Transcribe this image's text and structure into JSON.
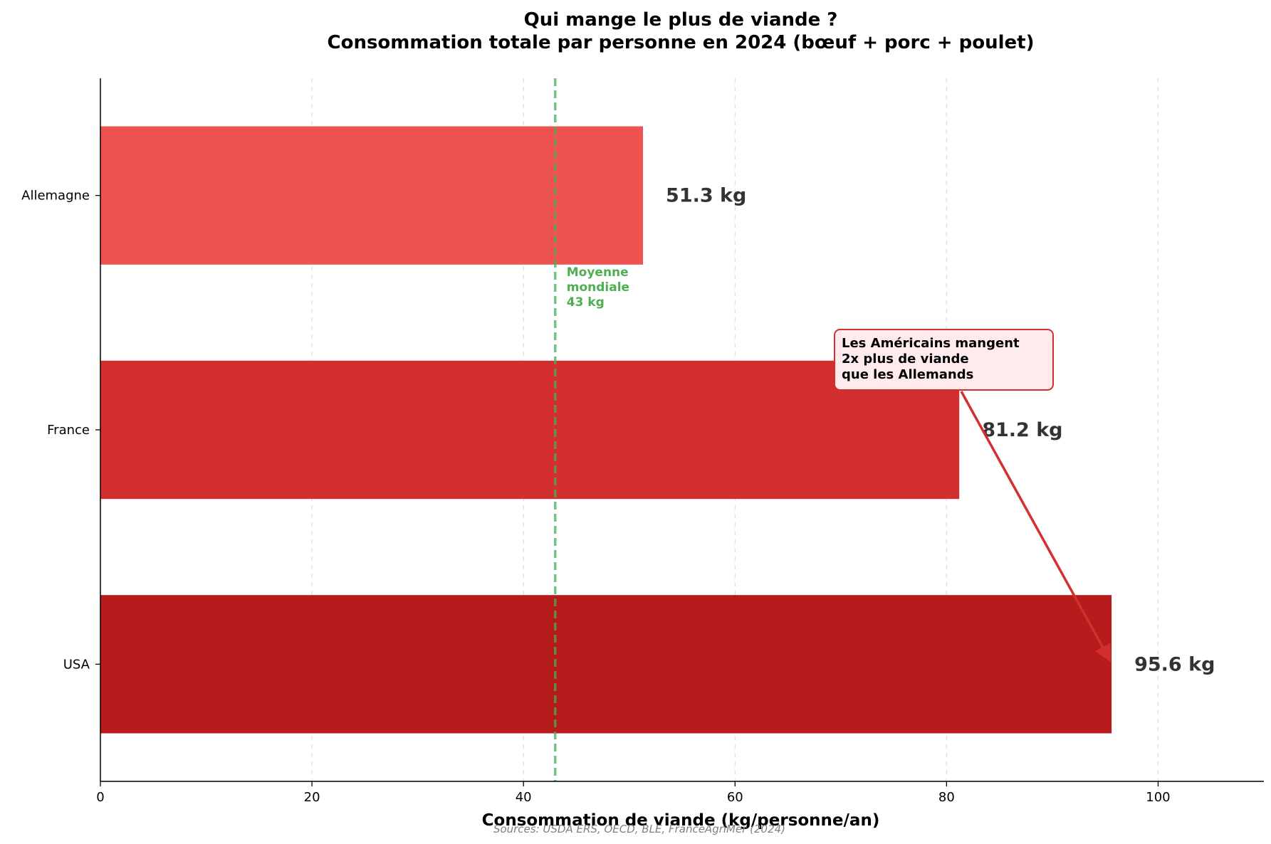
{
  "chart_data": {
    "type": "bar",
    "orientation": "horizontal",
    "title": "Qui mange le plus de viande ?",
    "subtitle": "Consommation totale par personne en 2024 (bœuf + porc + poulet)",
    "xlabel": "Consommation de viande (kg/personne/an)",
    "ylabel": "",
    "xlim": [
      0,
      110
    ],
    "xticks": [
      0,
      20,
      40,
      60,
      80,
      100
    ],
    "grid": "x-dashed",
    "categories": [
      "Allemagne",
      "France",
      "USA"
    ],
    "values": [
      51.3,
      81.2,
      95.6
    ],
    "value_labels": [
      "51.3 kg",
      "81.2 kg",
      "95.6 kg"
    ],
    "colors": [
      "#ef5350",
      "#d32f2f",
      "#b71c1c"
    ],
    "reference_line": {
      "value": 43,
      "label_lines": [
        "Moyenne",
        "mondiale",
        "43 kg"
      ],
      "color": "#4caf50"
    },
    "annotation": {
      "text_lines": [
        "Les Américains mangent",
        "2x plus de viande",
        "que les Allemands"
      ],
      "arrow_target": {
        "category": "USA",
        "value": 95.6
      },
      "color": "#d32f2f",
      "box_fill": "#ffebee"
    },
    "source": "Sources: USDA ERS, OECD, BLE, FranceAgriMer (2024)"
  }
}
